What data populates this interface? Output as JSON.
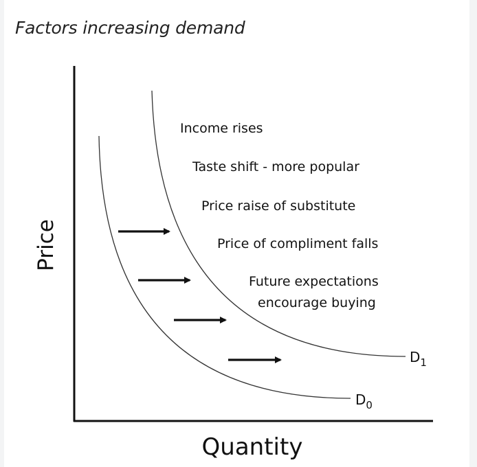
{
  "caption": "Factors increasing demand",
  "axes": {
    "x_label": "Quantity",
    "y_label": "Price"
  },
  "curves": {
    "d0": {
      "letter": "D",
      "subscript": "0"
    },
    "d1": {
      "letter": "D",
      "subscript": "1"
    }
  },
  "factors": [
    "Income rises",
    "Taste shift - more popular",
    "Price raise of substitute",
    "Price of compliment falls",
    "Future expectations",
    "encourage buying"
  ],
  "colors": {
    "ink": "#111111",
    "curve": "#333333",
    "background": "#ffffff",
    "page": "#f3f4f5"
  }
}
